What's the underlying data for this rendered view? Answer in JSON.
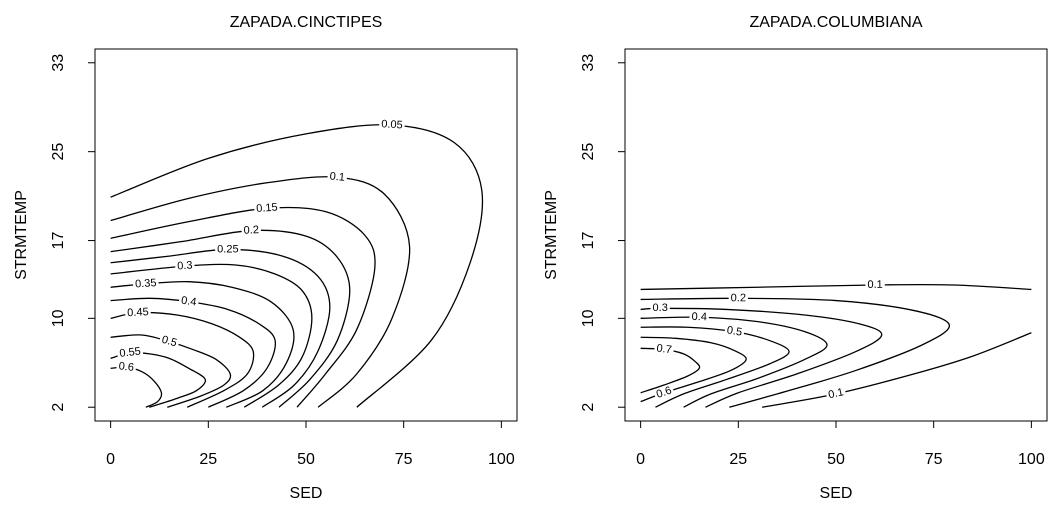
{
  "chart_data": [
    {
      "type": "contour",
      "title": "ZAPADA.CINCTIPES",
      "x_label": "SED",
      "y_label": "STRMTEMP",
      "xlim": [
        -4,
        104
      ],
      "ylim": [
        0.76,
        34.24
      ],
      "xticks": [
        0,
        25,
        50,
        75,
        100
      ],
      "yticks": [
        2,
        10,
        17,
        25,
        33
      ],
      "color": "#000000",
      "levels": [
        {
          "level": 0.05,
          "x": [
            0,
            25,
            50,
            72,
            88,
            95,
            92,
            82,
            63
          ],
          "y": [
            20.9,
            24.4,
            26.6,
            27.4,
            25.8,
            21.5,
            15,
            8,
            2
          ]
        },
        {
          "level": 0.1,
          "x": [
            0,
            20,
            40,
            58,
            70,
            76.5,
            72,
            63,
            53.1
          ],
          "y": [
            18.8,
            20.8,
            22.2,
            22.7,
            21.2,
            16.5,
            10,
            5,
            2
          ]
        },
        {
          "level": 0.15,
          "x": [
            0,
            20,
            40,
            55,
            65,
            67.6,
            63,
            55,
            47.7
          ],
          "y": [
            17.2,
            18.7,
            19.9,
            19.6,
            17.5,
            14.5,
            9,
            5,
            2
          ]
        },
        {
          "level": 0.2,
          "x": [
            0,
            18,
            36,
            50,
            58,
            61.2,
            58,
            51,
            43.1
          ],
          "y": [
            16,
            16.9,
            17.9,
            17.4,
            15.5,
            12.5,
            8,
            4.5,
            2
          ]
        },
        {
          "level": 0.25,
          "x": [
            0,
            15,
            30,
            44,
            53,
            56.1,
            53,
            47,
            38.8
          ],
          "y": [
            15,
            15.6,
            16.2,
            15.6,
            13.8,
            11,
            7,
            4,
            2
          ]
        },
        {
          "level": 0.3,
          "x": [
            0,
            19,
            32,
            42,
            49,
            51.5,
            49,
            43,
            34.2
          ],
          "y": [
            14,
            14.7,
            14.8,
            14,
            12.5,
            10,
            6.5,
            4,
            2
          ]
        },
        {
          "level": 0.35,
          "x": [
            0,
            9,
            20,
            31,
            41,
            46.7,
            45,
            39,
            29.6
          ],
          "y": [
            12.8,
            13.1,
            13.3,
            12.8,
            11.5,
            9,
            6,
            3.5,
            2
          ]
        },
        {
          "level": 0.4,
          "x": [
            0,
            10,
            20,
            30,
            38,
            42.1,
            40,
            34,
            25
          ],
          "y": [
            11.6,
            11.8,
            11.5,
            10.8,
            9.5,
            8,
            5.5,
            3.5,
            2
          ]
        },
        {
          "level": 0.45,
          "x": [
            0,
            7,
            17,
            26,
            33,
            36.5,
            35,
            29,
            19.6
          ],
          "y": [
            10,
            10.5,
            10.3,
            9.5,
            8.3,
            7,
            5,
            3.5,
            2
          ]
        },
        {
          "level": 0.5,
          "x": [
            0,
            8,
            15,
            21,
            27,
            30.6,
            29,
            23,
            14.5
          ],
          "y": [
            8.3,
            8.5,
            7.9,
            7.2,
            6.3,
            5,
            4,
            3,
            2
          ]
        },
        {
          "level": 0.55,
          "x": [
            0,
            5,
            10,
            15,
            20,
            24.2,
            22,
            17,
            9.9
          ],
          "y": [
            6.4,
            6.9,
            6.8,
            6.4,
            5.5,
            4.5,
            3.5,
            2.8,
            2
          ]
        },
        {
          "level": 0.6,
          "x": [
            0,
            4,
            8,
            11,
            13,
            12,
            9
          ],
          "y": [
            5.5,
            5.6,
            5.2,
            4.4,
            3.3,
            2.5,
            2
          ]
        }
      ]
    },
    {
      "type": "contour",
      "title": "ZAPADA.COLUMBIANA",
      "x_label": "SED",
      "y_label": "STRMTEMP",
      "xlim": [
        -4,
        104
      ],
      "ylim": [
        0.76,
        34.24
      ],
      "xticks": [
        0,
        25,
        50,
        75,
        100
      ],
      "yticks": [
        2,
        10,
        17,
        25,
        33
      ],
      "color": "#000000",
      "levels": [
        {
          "level": 0.1,
          "x": [
            0,
            30,
            60,
            80,
            100,
            null,
            31.1,
            50,
            70,
            85,
            100
          ],
          "y": [
            12.6,
            12.8,
            13,
            13,
            12.6,
            null,
            2,
            3.2,
            5,
            6.6,
            8.7
          ]
        },
        {
          "level": 0.2,
          "x": [
            0,
            25,
            50,
            70,
            79,
            72,
            55,
            38,
            22.7
          ],
          "y": [
            11.7,
            11.8,
            11.6,
            10.7,
            9.4,
            7.6,
            5.3,
            3.5,
            2
          ]
        },
        {
          "level": 0.3,
          "x": [
            0,
            5,
            22,
            42,
            56,
            61.7,
            55,
            40,
            25,
            16.6
          ],
          "y": [
            10.8,
            10.9,
            10.8,
            10.3,
            9.5,
            8.5,
            7,
            5,
            3.3,
            2
          ]
        },
        {
          "level": 0.4,
          "x": [
            0,
            15,
            30,
            42,
            47.7,
            42,
            30,
            18,
            11
          ],
          "y": [
            10,
            10.1,
            9.7,
            8.8,
            7.6,
            6.3,
            4.6,
            3.2,
            2
          ]
        },
        {
          "level": 0.5,
          "x": [
            0,
            12,
            24,
            33,
            38,
            33,
            22,
            11,
            3.8
          ],
          "y": [
            9.2,
            9.2,
            8.8,
            8,
            7,
            5.9,
            4.5,
            3.2,
            2
          ]
        },
        {
          "level": 0.6,
          "x": [
            0,
            9,
            18,
            24,
            27,
            23,
            15,
            6,
            0
          ],
          "y": [
            8.3,
            8.2,
            7.8,
            7.1,
            6.3,
            5.3,
            4.3,
            3.3,
            2.5
          ]
        },
        {
          "level": 0.7,
          "x": [
            0,
            6,
            11,
            14,
            15,
            12,
            6,
            0
          ],
          "y": [
            7.3,
            7.2,
            6.8,
            6.1,
            5.5,
            4.8,
            4,
            3.3
          ]
        }
      ]
    }
  ]
}
